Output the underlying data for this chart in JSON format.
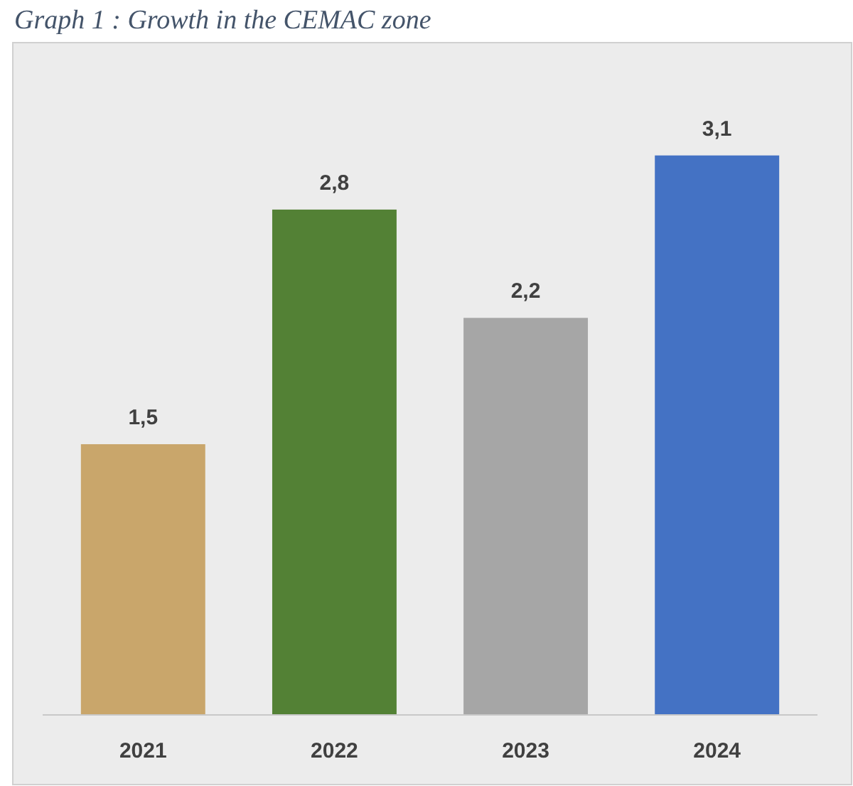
{
  "chart_data": {
    "type": "bar",
    "title": "Graph 1 : Growth in the CEMAC zone",
    "categories": [
      "2021",
      "2022",
      "2023",
      "2024"
    ],
    "values": [
      1.5,
      2.8,
      2.2,
      3.1
    ],
    "colors": [
      "#c9a66b",
      "#538135",
      "#a6a6a6",
      "#4472c4"
    ],
    "value_labels": [
      "1,5",
      "2,8",
      "2,2",
      "3,1"
    ]
  }
}
